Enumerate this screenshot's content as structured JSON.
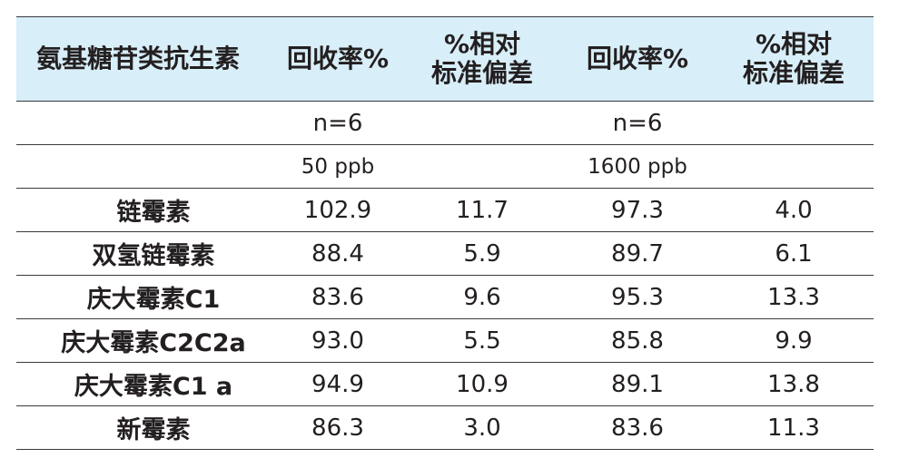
{
  "header": {
    "col0": "氨基糖苷类抗生素",
    "col1": "回收率%",
    "col2_line1": "%相对",
    "col2_line2": "标准偏差",
    "col3": "回收率%",
    "col4_line1": "%相对",
    "col4_line2": "标准偏差"
  },
  "meta_rows": [
    {
      "c0": "",
      "c1": "n=6",
      "c2": "",
      "c3": "n=6",
      "c4": ""
    },
    {
      "c0": "",
      "c1": "50 ppb",
      "c2": "",
      "c3": "1600 ppb",
      "c4": ""
    }
  ],
  "rows": [
    {
      "name": "链霉素",
      "rec50": "102.9",
      "rsd50": "11.7",
      "rec1600": "97.3",
      "rsd1600": "4.0"
    },
    {
      "name": "双氢链霉素",
      "rec50": "88.4",
      "rsd50": "5.9",
      "rec1600": "89.7",
      "rsd1600": "6.1"
    },
    {
      "name": "庆大霉素C1",
      "rec50": "83.6",
      "rsd50": "9.6",
      "rec1600": "95.3",
      "rsd1600": "13.3"
    },
    {
      "name": "庆大霉素C2C2a",
      "rec50": "93.0",
      "rsd50": "5.5",
      "rec1600": "85.8",
      "rsd1600": "9.9"
    },
    {
      "name": "庆大霉素C1 a",
      "rec50": "94.9",
      "rsd50": "10.9",
      "rec1600": "89.1",
      "rsd1600": "13.8"
    },
    {
      "name": "新霉素",
      "rec50": "86.3",
      "rsd50": "3.0",
      "rec1600": "83.6",
      "rsd1600": "11.3"
    }
  ],
  "colors": {
    "header_bg": "#d8eef8",
    "text": "#231f20",
    "rule": "#3a3a3a"
  }
}
